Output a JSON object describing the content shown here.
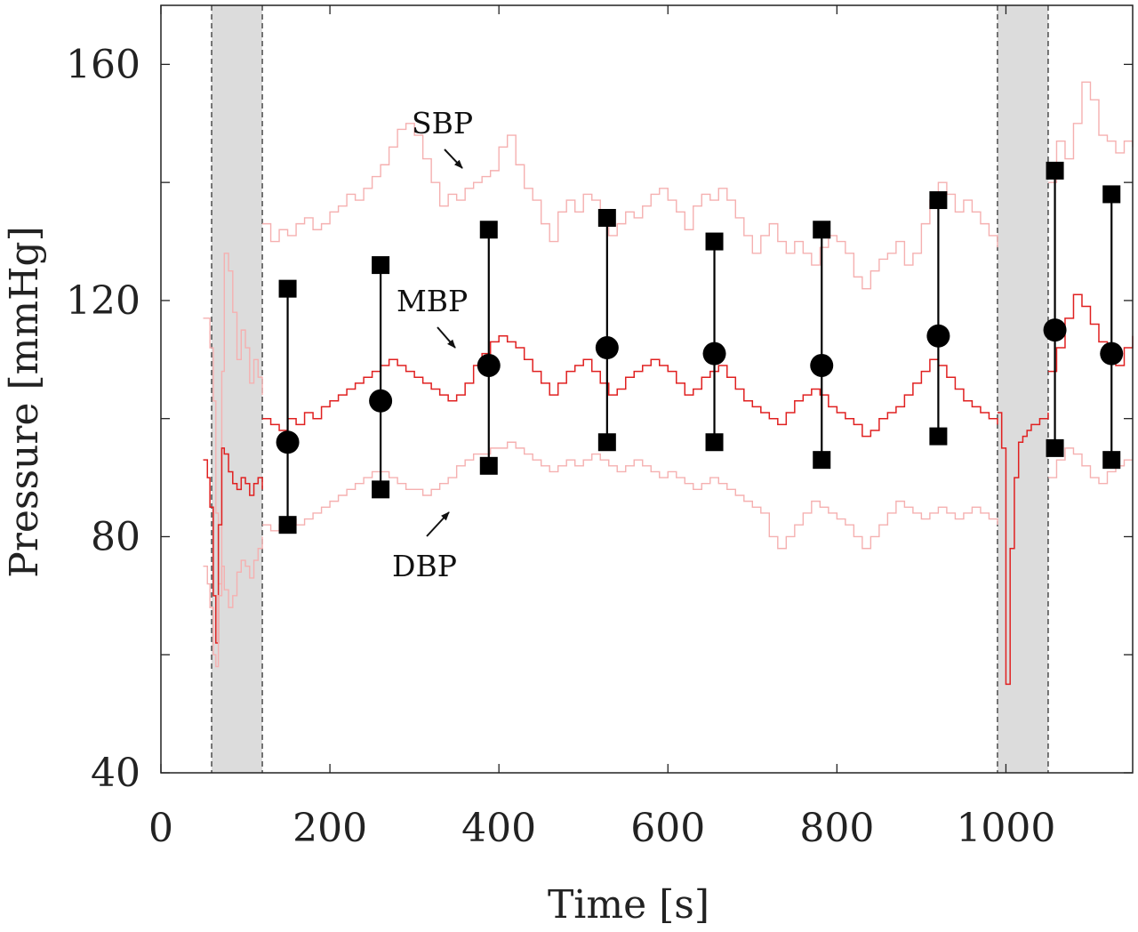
{
  "chart_data": {
    "type": "line",
    "xlabel": "Time [s]",
    "ylabel": "Pressure [mmHg]",
    "xlim": [
      0,
      1150
    ],
    "ylim": [
      40,
      170
    ],
    "xticks": [
      0,
      200,
      400,
      600,
      800,
      1000
    ],
    "yticks": [
      40,
      80,
      120,
      160
    ],
    "yticks_minor": [
      60,
      100,
      140
    ],
    "grid": false,
    "shaded_intervals": [
      [
        60,
        120
      ],
      [
        990,
        1050
      ]
    ],
    "colors": {
      "mbp": "#e02020",
      "sbp_dbp": "#f5b0b0",
      "markers": "#000000",
      "shade": "#dcdcdc"
    },
    "series": [
      {
        "x": [
          50,
          55,
          58,
          62,
          65,
          68,
          72,
          75,
          80,
          85,
          90,
          95,
          100,
          105,
          110,
          115,
          120
        ],
        "y": [
          117,
          117,
          112,
          103,
          84,
          72,
          108,
          128,
          125,
          118,
          110,
          115,
          112,
          106,
          110,
          107,
          104
        ]
      },
      {
        "x": [
          120,
          130,
          140,
          150,
          160,
          170,
          180,
          190,
          200,
          210,
          220,
          230,
          240,
          250,
          260,
          270,
          280,
          290,
          300,
          310,
          320,
          330,
          340,
          350,
          360,
          370,
          380,
          390,
          400,
          410,
          420,
          430,
          440,
          450,
          460,
          470,
          480,
          490,
          500,
          510,
          520,
          530,
          540,
          550,
          560,
          570,
          580,
          590,
          600,
          610,
          620,
          630,
          640,
          650,
          660,
          670,
          680,
          690,
          700,
          710,
          720,
          730,
          740,
          750,
          760,
          770,
          780,
          790,
          800,
          810,
          820,
          830,
          840,
          850,
          860,
          870,
          880,
          890,
          900,
          910,
          920,
          930,
          940,
          950,
          960,
          970,
          980,
          990
        ],
        "y": [
          133,
          130,
          132,
          131,
          133,
          134,
          132,
          133,
          135,
          136,
          138,
          137,
          139,
          141,
          143,
          146,
          149,
          150,
          148,
          144,
          140,
          136,
          138,
          137,
          139,
          140,
          141,
          142,
          146,
          148,
          143,
          139,
          137,
          133,
          130,
          135,
          137,
          135,
          138,
          137,
          134,
          131,
          133,
          135,
          134,
          136,
          138,
          139,
          137,
          135,
          132,
          136,
          138,
          137,
          139,
          137,
          134,
          131,
          128,
          131,
          133,
          130,
          128,
          130,
          128,
          126,
          129,
          131,
          130,
          128,
          124,
          122,
          125,
          127,
          128,
          130,
          126,
          128,
          133,
          137,
          140,
          138,
          135,
          137,
          135,
          133,
          131,
          129
        ]
      },
      {
        "x": [
          1050,
          1060,
          1070,
          1080,
          1090,
          1100,
          1110,
          1120,
          1130,
          1140,
          1150
        ],
        "y": [
          140,
          147,
          144,
          150,
          157,
          154,
          148,
          147,
          145,
          147,
          146
        ]
      },
      {
        "name": "MBP",
        "x": [
          50,
          55,
          58,
          62,
          65,
          68,
          72,
          75,
          80,
          85,
          90,
          95,
          100,
          105,
          110,
          115,
          120
        ],
        "y": [
          93,
          90,
          85,
          70,
          62,
          82,
          95,
          94,
          91,
          89,
          88,
          90,
          89,
          87,
          89,
          90,
          88
        ]
      },
      {
        "x": [
          120,
          130,
          140,
          150,
          160,
          170,
          180,
          190,
          200,
          210,
          220,
          230,
          240,
          250,
          260,
          270,
          280,
          290,
          300,
          310,
          320,
          330,
          340,
          350,
          360,
          370,
          380,
          390,
          400,
          410,
          420,
          430,
          440,
          450,
          460,
          470,
          480,
          490,
          500,
          510,
          520,
          530,
          540,
          550,
          560,
          570,
          580,
          590,
          600,
          610,
          620,
          630,
          640,
          650,
          660,
          670,
          680,
          690,
          700,
          710,
          720,
          730,
          740,
          750,
          760,
          770,
          780,
          790,
          800,
          810,
          820,
          830,
          840,
          850,
          860,
          870,
          880,
          890,
          900,
          910,
          920,
          930,
          940,
          950,
          960,
          970,
          980,
          990
        ],
        "y": [
          100,
          99,
          98,
          100,
          99,
          101,
          100,
          102,
          103,
          104,
          105,
          106,
          107,
          108,
          109,
          110,
          109,
          108,
          107,
          106,
          105,
          104,
          103,
          104,
          106,
          109,
          111,
          113,
          114,
          113,
          112,
          110,
          108,
          106,
          104,
          106,
          108,
          109,
          110,
          108,
          106,
          104,
          105,
          107,
          108,
          109,
          110,
          109,
          108,
          106,
          104,
          105,
          107,
          108,
          109,
          107,
          105,
          103,
          102,
          101,
          100,
          99,
          101,
          103,
          104,
          105,
          104,
          102,
          101,
          100,
          99,
          97,
          98,
          100,
          101,
          102,
          104,
          106,
          108,
          110,
          109,
          107,
          105,
          103,
          102,
          101,
          100,
          99
        ]
      },
      {
        "x": [
          1050,
          1060,
          1070,
          1080,
          1090,
          1100,
          1110,
          1120,
          1130,
          1140,
          1150
        ],
        "y": [
          108,
          112,
          117,
          121,
          119,
          116,
          113,
          111,
          109,
          112,
          114
        ]
      },
      {
        "x": [
          50,
          55,
          58,
          62,
          65,
          68,
          72,
          75,
          80,
          85,
          90,
          95,
          100,
          105,
          110,
          115,
          120
        ],
        "y": [
          75,
          72,
          68,
          60,
          58,
          70,
          75,
          71,
          68,
          70,
          74,
          76,
          75,
          73,
          76,
          78,
          80
        ]
      },
      {
        "x": [
          120,
          130,
          140,
          150,
          160,
          170,
          180,
          190,
          200,
          210,
          220,
          230,
          240,
          250,
          260,
          270,
          280,
          290,
          300,
          310,
          320,
          330,
          340,
          350,
          360,
          370,
          380,
          390,
          400,
          410,
          420,
          430,
          440,
          450,
          460,
          470,
          480,
          490,
          500,
          510,
          520,
          530,
          540,
          550,
          560,
          570,
          580,
          590,
          600,
          610,
          620,
          630,
          640,
          650,
          660,
          670,
          680,
          690,
          700,
          710,
          720,
          730,
          740,
          750,
          760,
          770,
          780,
          790,
          800,
          810,
          820,
          830,
          840,
          850,
          860,
          870,
          880,
          890,
          900,
          910,
          920,
          930,
          940,
          950,
          960,
          970,
          980,
          990
        ],
        "y": [
          82,
          81,
          82,
          83,
          82,
          83,
          84,
          85,
          86,
          87,
          88,
          89,
          90,
          91,
          91,
          90,
          89,
          88,
          88,
          87,
          88,
          89,
          90,
          92,
          93,
          94,
          94,
          95,
          95,
          96,
          95,
          94,
          93,
          92,
          91,
          92,
          93,
          92,
          93,
          94,
          93,
          92,
          91,
          92,
          93,
          92,
          91,
          90,
          91,
          90,
          89,
          88,
          89,
          90,
          89,
          88,
          87,
          86,
          85,
          84,
          80,
          78,
          80,
          82,
          84,
          86,
          85,
          84,
          83,
          82,
          80,
          78,
          80,
          82,
          84,
          86,
          85,
          84,
          83,
          84,
          85,
          84,
          83,
          84,
          85,
          84,
          83,
          82
        ]
      },
      {
        "x": [
          1050,
          1060,
          1070,
          1080,
          1090,
          1100,
          1110,
          1120,
          1130,
          1140,
          1150
        ],
        "y": [
          90,
          93,
          95,
          94,
          92,
          90,
          89,
          91,
          92,
          93,
          93
        ]
      },
      {
        "x": [
          990,
          995,
          1000,
          1005,
          1010,
          1015,
          1020,
          1025,
          1030,
          1040,
          1050
        ],
        "y": [
          101,
          95,
          55,
          78,
          90,
          96,
          97,
          98,
          99,
          100,
          101
        ]
      }
    ],
    "summary_points": {
      "x": [
        150,
        260,
        388,
        528,
        655,
        782,
        920,
        1058,
        1125
      ],
      "mean": [
        96,
        103,
        109,
        112,
        111,
        109,
        114,
        115,
        111
      ],
      "upper": [
        122,
        126,
        132,
        134,
        130,
        132,
        137,
        142,
        138
      ],
      "lower": [
        82,
        88,
        92,
        96,
        96,
        93,
        97,
        95,
        93
      ]
    },
    "annotations": [
      {
        "text": "SBP",
        "x": 360,
        "y": 141
      },
      {
        "text": "MBP",
        "x": 360,
        "y": 112
      },
      {
        "text": "DBP",
        "x": 345,
        "y": 85
      }
    ]
  }
}
